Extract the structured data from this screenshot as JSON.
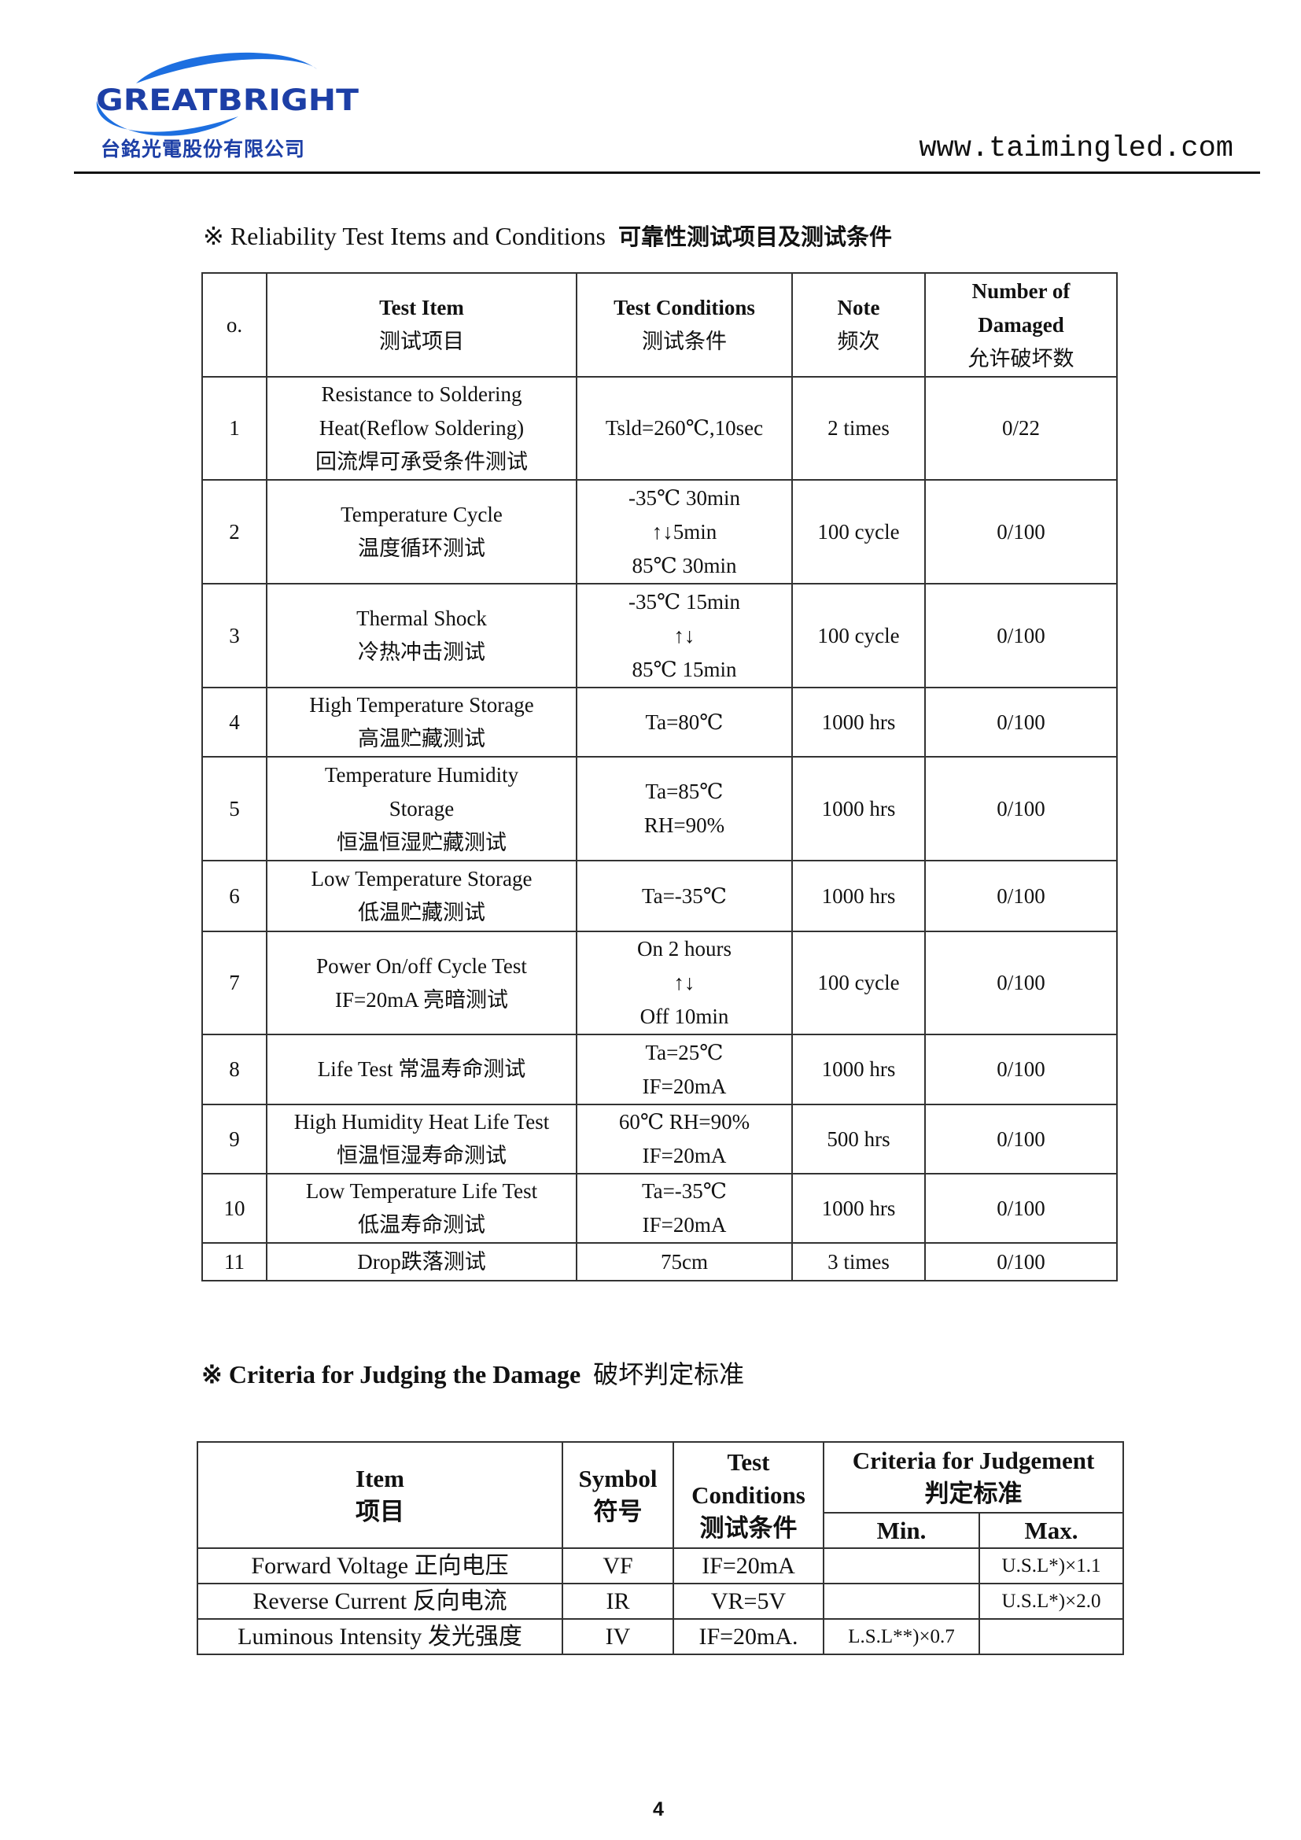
{
  "header": {
    "logo_text": "GREATBRIGHT",
    "company_cn": "台銘光電股份有限公司",
    "url": "www.taimingled.com",
    "brand_color": "#1d5fd6"
  },
  "section1": {
    "mark": "※",
    "title_en": "Reliability Test Items and Conditions",
    "title_cn": "可靠性测试项目及测试条件",
    "headers": {
      "no": "o.",
      "item_en": "Test Item",
      "item_cn": "测试项目",
      "cond_en": "Test Conditions",
      "cond_cn": "测试条件",
      "note_en": "Note",
      "note_cn": "频次",
      "dmg_en1": "Number of",
      "dmg_en2": "Damaged",
      "dmg_cn": "允许破坏数"
    },
    "rows": [
      {
        "no": "1",
        "item": [
          "Resistance to Soldering",
          "Heat(Reflow Soldering)",
          "回流焊可承受条件测试"
        ],
        "cond": [
          "Tsld=260℃,10sec"
        ],
        "note": "2 times",
        "damaged": "0/22"
      },
      {
        "no": "2",
        "item": [
          "Temperature Cycle",
          "温度循环测试"
        ],
        "cond": [
          "-35℃ 30min",
          "↑↓5min",
          "85℃ 30min"
        ],
        "note": "100 cycle",
        "damaged": "0/100"
      },
      {
        "no": "3",
        "item": [
          "Thermal Shock",
          "冷热冲击测试"
        ],
        "cond": [
          "-35℃ 15min",
          "↑↓",
          "85℃ 15min"
        ],
        "note": "100 cycle",
        "damaged": "0/100"
      },
      {
        "no": "4",
        "item": [
          "High Temperature Storage",
          "高温贮藏测试"
        ],
        "cond": [
          "Ta=80℃"
        ],
        "note": "1000 hrs",
        "damaged": "0/100"
      },
      {
        "no": "5",
        "item": [
          "Temperature Humidity",
          "Storage",
          "恒温恒湿贮藏测试"
        ],
        "cond": [
          "Ta=85℃",
          "RH=90%"
        ],
        "note": "1000 hrs",
        "damaged": "0/100"
      },
      {
        "no": "6",
        "item": [
          "Low Temperature Storage",
          "低温贮藏测试"
        ],
        "cond": [
          "Ta=-35℃"
        ],
        "note": "1000 hrs",
        "damaged": "0/100"
      },
      {
        "no": "7",
        "item": [
          "Power On/off Cycle Test",
          "IF=20mA  亮暗测试"
        ],
        "cond": [
          "On 2 hours",
          "↑↓",
          "Off 10min"
        ],
        "note": "100 cycle",
        "damaged": "0/100"
      },
      {
        "no": "8",
        "item": [
          "Life Test  常温寿命测试"
        ],
        "cond": [
          "Ta=25℃",
          "IF=20mA"
        ],
        "note": "1000 hrs",
        "damaged": "0/100"
      },
      {
        "no": "9",
        "item": [
          "High Humidity Heat Life Test",
          "恒温恒湿寿命测试"
        ],
        "cond": [
          "60℃ RH=90%",
          "IF=20mA"
        ],
        "note": "500 hrs",
        "damaged": "0/100"
      },
      {
        "no": "10",
        "item": [
          "Low Temperature Life Test",
          "低温寿命测试"
        ],
        "cond": [
          "Ta=-35℃",
          "IF=20mA"
        ],
        "note": "1000 hrs",
        "damaged": "0/100"
      },
      {
        "no": "11",
        "item": [
          "Drop跌落测试"
        ],
        "cond": [
          "75cm"
        ],
        "note": "3 times",
        "damaged": "0/100"
      }
    ]
  },
  "section2": {
    "mark": "※",
    "title_en": "Criteria for Judging the Damage",
    "title_cn": "破坏判定标准",
    "headers": {
      "item_en": "Item",
      "item_cn": "项目",
      "symbol_en": "Symbol",
      "symbol_cn": "符号",
      "cond_en1": "Test",
      "cond_en2": "Conditions",
      "cond_cn": "测试条件",
      "crit_en": "Criteria for Judgement",
      "crit_cn": "判定标准",
      "min": "Min.",
      "max": "Max."
    },
    "rows": [
      {
        "item": "Forward Voltage  正向电压",
        "symbol": "VF",
        "cond": "IF=20mA",
        "min": "",
        "max": "U.S.L*)×1.1"
      },
      {
        "item": "Reverse Current  反向电流",
        "symbol": "IR",
        "cond": "VR=5V",
        "min": "",
        "max": "U.S.L*)×2.0"
      },
      {
        "item": "Luminous Intensity  发光强度",
        "symbol": "IV",
        "cond": "IF=20mA.",
        "min": "L.S.L**)×0.7",
        "max": ""
      }
    ]
  },
  "footer": {
    "page_number": "4"
  }
}
